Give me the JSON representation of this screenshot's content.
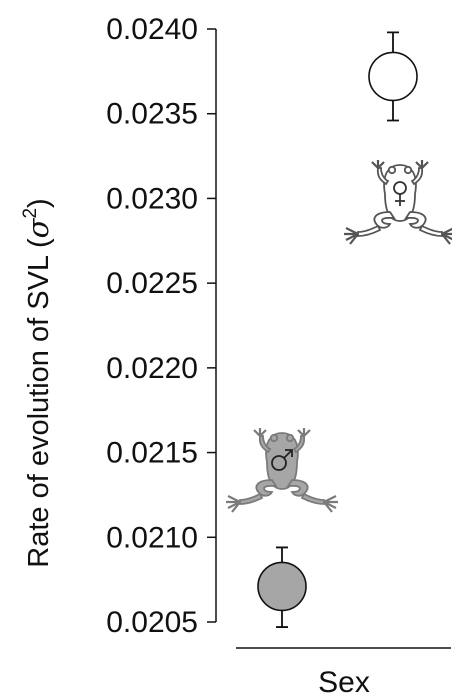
{
  "chart_data": {
    "type": "scatter",
    "title": "",
    "ylabel": "Rate of evolution of SVL (σ²)",
    "ylabel_main": "Rate of evolution of SVL (",
    "ylabel_symbol": "σ",
    "ylabel_exp": "2",
    "ylabel_close": ")",
    "xlabel": "Sex",
    "ylim": [
      0.0205,
      0.024
    ],
    "yticks": [
      "0.0240",
      "0.0235",
      "0.0230",
      "0.0225",
      "0.0220",
      "0.0215",
      "0.0210",
      "0.0205"
    ],
    "grid": false,
    "series": [
      {
        "category": "Male",
        "value": 0.02071,
        "error_upper": 0.02094,
        "error_lower": 0.02047,
        "fill": "#a6a6a6",
        "icon": "male-frog-icon"
      },
      {
        "category": "Female",
        "value": 0.02372,
        "error_upper": 0.02398,
        "error_lower": 0.02346,
        "fill": "#ffffff",
        "icon": "female-frog-icon"
      }
    ]
  }
}
